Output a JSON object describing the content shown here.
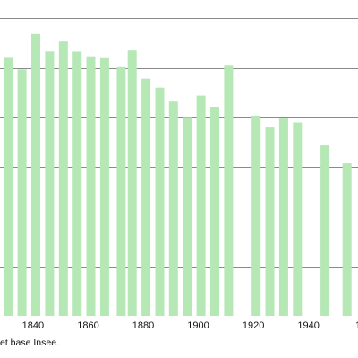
{
  "chart_data": {
    "type": "bar",
    "x_years": [
      1831,
      1836,
      1841,
      1846,
      1851,
      1856,
      1861,
      1866,
      1872,
      1876,
      1881,
      1886,
      1891,
      1896,
      1901,
      1906,
      1911,
      1921,
      1926,
      1931,
      1936,
      1946,
      1954
    ],
    "values": [
      1300,
      1242,
      1420,
      1332,
      1382,
      1331,
      1303,
      1298,
      1253,
      1337,
      1195,
      1150,
      1080,
      998,
      1110,
      1050,
      1260,
      1005,
      950,
      995,
      975,
      860,
      770
    ],
    "xtick_labels": [
      "1840",
      "1860",
      "1880",
      "1900",
      "1920",
      "1940"
    ],
    "xtick_values": [
      1840,
      1860,
      1880,
      1900,
      1920,
      1940
    ],
    "xlim": [
      1828,
      1958
    ],
    "ylim": [
      0,
      1500
    ],
    "grid": true,
    "bar_color": "#b5e8b5",
    "source_text": "et base Insee."
  }
}
